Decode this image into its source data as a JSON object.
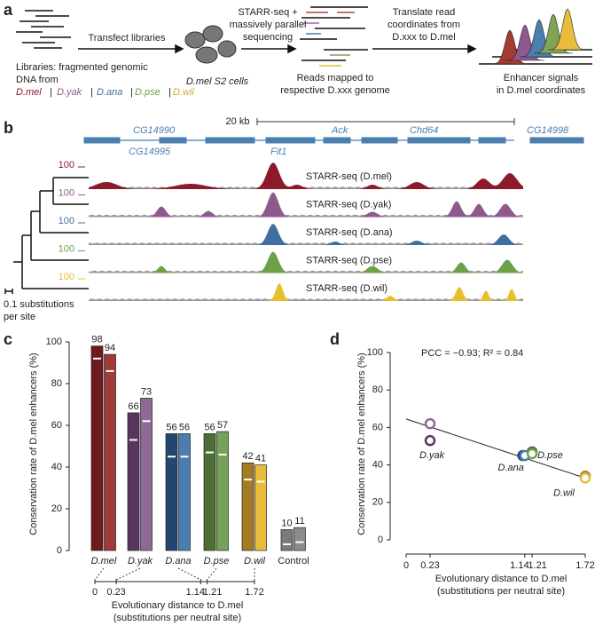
{
  "panel_a": {
    "label": "a",
    "transfect": "Transfect libraries",
    "libraries": [
      "Libraries: fragmented genomic",
      "DNA from"
    ],
    "species": [
      "D.mel",
      "D.yak",
      "D.ana",
      "D.pse",
      "D.wil"
    ],
    "separator": "|",
    "cells": "D.mel S2 cells",
    "sequencing": [
      "STARR-seq +",
      "massively parallel",
      "sequencing"
    ],
    "mapped": [
      "Reads mapped to",
      "respective D.xxx genome"
    ],
    "translate": [
      "Translate read",
      "coordinates from",
      "D.xxx to D.mel"
    ],
    "signals": [
      "Enhancer signals",
      "in D.mel coordinates"
    ]
  },
  "panel_b": {
    "label": "b",
    "scale": "20 kb",
    "genes": [
      "CG14990",
      "CG14995",
      "Fit1",
      "Ack",
      "Chd64",
      "CG14998"
    ],
    "tracks": [
      {
        "name": "STARR-seq (D.mel)",
        "scale": 100,
        "color": "#8b1a2a"
      },
      {
        "name": "STARR-seq (D.yak)",
        "scale": 100,
        "color": "#8e5a8e"
      },
      {
        "name": "STARR-seq (D.ana)",
        "scale": 100,
        "color": "#3f6fa0"
      },
      {
        "name": "STARR-seq (D.pse)",
        "scale": 100,
        "color": "#6ea04a"
      },
      {
        "name": "STARR-seq (D.wil)",
        "scale": 100,
        "color": "#e8bd2e"
      }
    ],
    "tree_scale": [
      "0.1 substitutions",
      "per site"
    ]
  },
  "chart_data": [
    {
      "type": "bar",
      "panel_label": "c",
      "ylabel": "Conservation rate of D.mel enhancers (%)",
      "categories": [
        "D.mel",
        "D.yak",
        "D.ana",
        "D.pse",
        "D.wil",
        "Control"
      ],
      "series": [
        {
          "values": [
            98,
            66,
            56,
            56,
            42,
            10
          ],
          "colors": [
            "#6e1a1e",
            "#5a3560",
            "#23466e",
            "#4d6e35",
            "#a37a26",
            "#7a7a7a"
          ],
          "markers": [
            92,
            53,
            45,
            47,
            34,
            3
          ]
        },
        {
          "values": [
            94,
            73,
            56,
            57,
            41,
            11
          ],
          "colors": [
            "#9e3a38",
            "#8e6a96",
            "#4a7db0",
            "#77a058",
            "#e9bd3c",
            "#8c8c8c"
          ],
          "markers": [
            86,
            62,
            45,
            46,
            33,
            4
          ]
        }
      ],
      "ylim": [
        0,
        100
      ],
      "yticks": [
        0,
        20,
        40,
        60,
        80,
        100
      ],
      "distance_axis": {
        "xlim": [
          0,
          1.72
        ],
        "xticks": [
          0,
          0.23,
          1.14,
          1.21,
          1.72
        ]
      },
      "xlabel": [
        "Evolutionary distance to D.mel",
        "(substitutions per neutral site)"
      ]
    },
    {
      "type": "scatter",
      "panel_label": "d",
      "annotation": "PCC = −0.93; R² = 0.84",
      "ylabel": "Conservation rate of D.mel enhancers (%)",
      "xlabel": [
        "Evolutionary distance to D.mel",
        "(substitutions per neutral site)"
      ],
      "xlim": [
        0,
        1.72
      ],
      "xticks": [
        0,
        0.23,
        1.14,
        1.21,
        1.72
      ],
      "ylim": [
        0,
        100
      ],
      "yticks": [
        0,
        20,
        40,
        60,
        80,
        100
      ],
      "series": [
        {
          "name": "D.yak",
          "colors": [
            "#5a3560",
            "#8e6a96"
          ],
          "x": [
            0.23,
            0.23
          ],
          "y": [
            53,
            62
          ]
        },
        {
          "name": "D.ana",
          "colors": [
            "#23466e",
            "#4a7db0"
          ],
          "x": [
            1.12,
            1.14
          ],
          "y": [
            45,
            45
          ]
        },
        {
          "name": "D.pse",
          "colors": [
            "#4d6e35",
            "#77a058"
          ],
          "x": [
            1.21,
            1.21
          ],
          "y": [
            47,
            46
          ]
        },
        {
          "name": "D.wil",
          "colors": [
            "#a37a26",
            "#e9bd3c"
          ],
          "x": [
            1.72,
            1.72
          ],
          "y": [
            34,
            33
          ]
        }
      ],
      "fit": {
        "x": [
          0,
          1.72
        ],
        "y": [
          64.5,
          33
        ]
      }
    }
  ]
}
